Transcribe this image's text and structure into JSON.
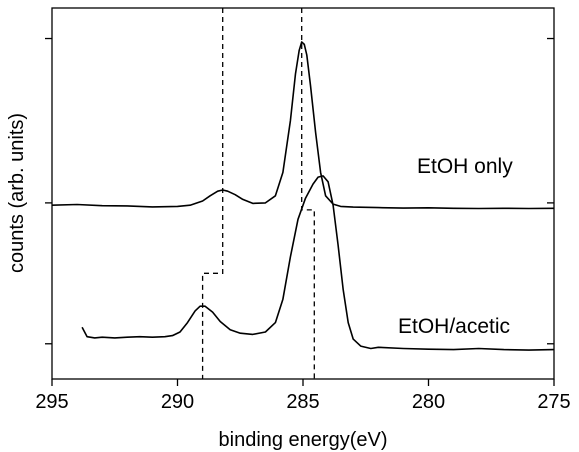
{
  "chart_data": {
    "type": "line",
    "title": "",
    "xlabel": "binding energy(eV)",
    "ylabel": "counts (arb. units)",
    "x_reversed": true,
    "xlim": [
      295,
      275
    ],
    "ylim": [
      0,
      1.58
    ],
    "xticks": [
      295,
      290,
      285,
      280,
      275
    ],
    "xtick_labels": [
      "295",
      "290",
      "285",
      "280",
      "275"
    ],
    "yticks": [
      0.15,
      0.75,
      1.45
    ],
    "grid": false,
    "legend": "none",
    "series": [
      {
        "name": "EtOH only",
        "color": "#000000",
        "points": [
          [
            295.0,
            0.74
          ],
          [
            294.0,
            0.743
          ],
          [
            293.0,
            0.738
          ],
          [
            292.0,
            0.737
          ],
          [
            291.0,
            0.733
          ],
          [
            290.0,
            0.735
          ],
          [
            289.5,
            0.74
          ],
          [
            289.0,
            0.758
          ],
          [
            288.7,
            0.78
          ],
          [
            288.4,
            0.8
          ],
          [
            288.2,
            0.805
          ],
          [
            288.0,
            0.8
          ],
          [
            287.7,
            0.785
          ],
          [
            287.4,
            0.765
          ],
          [
            287.0,
            0.748
          ],
          [
            286.5,
            0.75
          ],
          [
            286.1,
            0.78
          ],
          [
            285.8,
            0.88
          ],
          [
            285.5,
            1.1
          ],
          [
            285.3,
            1.3
          ],
          [
            285.15,
            1.4
          ],
          [
            285.05,
            1.435
          ],
          [
            284.95,
            1.425
          ],
          [
            284.85,
            1.38
          ],
          [
            284.7,
            1.25
          ],
          [
            284.5,
            1.05
          ],
          [
            284.3,
            0.88
          ],
          [
            284.1,
            0.78
          ],
          [
            283.8,
            0.745
          ],
          [
            283.5,
            0.735
          ],
          [
            283.0,
            0.732
          ],
          [
            282.0,
            0.73
          ],
          [
            281.0,
            0.728
          ],
          [
            280.0,
            0.729
          ],
          [
            279.0,
            0.727
          ],
          [
            278.0,
            0.726
          ],
          [
            277.0,
            0.727
          ],
          [
            276.0,
            0.726
          ],
          [
            275.0,
            0.727
          ]
        ]
      },
      {
        "name": "EtOH/acetic",
        "color": "#000000",
        "points": [
          [
            293.8,
            0.22
          ],
          [
            293.6,
            0.18
          ],
          [
            293.3,
            0.175
          ],
          [
            293.0,
            0.178
          ],
          [
            292.5,
            0.175
          ],
          [
            292.0,
            0.178
          ],
          [
            291.5,
            0.18
          ],
          [
            291.0,
            0.178
          ],
          [
            290.5,
            0.18
          ],
          [
            290.2,
            0.185
          ],
          [
            289.9,
            0.2
          ],
          [
            289.6,
            0.24
          ],
          [
            289.3,
            0.29
          ],
          [
            289.1,
            0.31
          ],
          [
            288.9,
            0.31
          ],
          [
            288.6,
            0.285
          ],
          [
            288.3,
            0.245
          ],
          [
            287.9,
            0.21
          ],
          [
            287.5,
            0.195
          ],
          [
            287.0,
            0.19
          ],
          [
            286.5,
            0.2
          ],
          [
            286.1,
            0.24
          ],
          [
            285.8,
            0.34
          ],
          [
            285.5,
            0.52
          ],
          [
            285.2,
            0.68
          ],
          [
            284.9,
            0.77
          ],
          [
            284.6,
            0.83
          ],
          [
            284.4,
            0.86
          ],
          [
            284.2,
            0.865
          ],
          [
            284.0,
            0.84
          ],
          [
            283.8,
            0.74
          ],
          [
            283.6,
            0.57
          ],
          [
            283.4,
            0.38
          ],
          [
            283.2,
            0.24
          ],
          [
            283.0,
            0.17
          ],
          [
            282.7,
            0.14
          ],
          [
            282.3,
            0.13
          ],
          [
            282.0,
            0.135
          ],
          [
            281.0,
            0.13
          ],
          [
            280.0,
            0.127
          ],
          [
            279.0,
            0.125
          ],
          [
            278.0,
            0.13
          ],
          [
            277.0,
            0.125
          ],
          [
            276.0,
            0.123
          ],
          [
            275.0,
            0.125
          ]
        ]
      }
    ],
    "reference_lines": [
      {
        "style": "dashed",
        "points": [
          [
            288.2,
            1.58
          ],
          [
            288.2,
            0.8
          ],
          [
            288.2,
            0.45
          ],
          [
            289.0,
            0.45
          ],
          [
            289.0,
            0.3
          ],
          [
            289.0,
            0.0
          ]
        ]
      },
      {
        "style": "dashed",
        "points": [
          [
            285.05,
            1.58
          ],
          [
            285.05,
            1.43
          ],
          [
            285.05,
            0.72
          ],
          [
            284.55,
            0.72
          ],
          [
            284.55,
            0.0
          ]
        ]
      }
    ]
  },
  "labels": {
    "series_1": "EtOH only",
    "series_2": "EtOH/acetic"
  }
}
